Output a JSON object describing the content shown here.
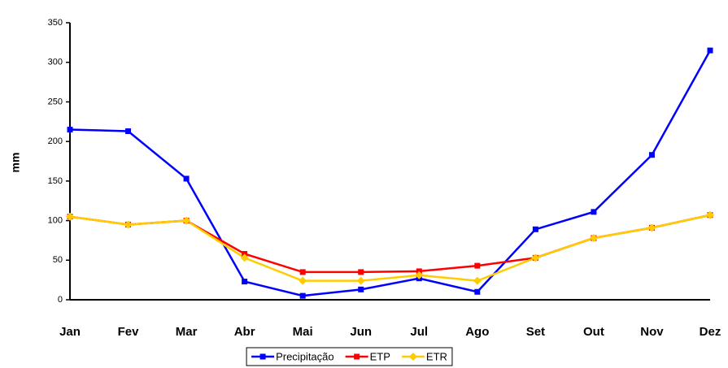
{
  "chart_data": {
    "type": "line",
    "y_label": "mm",
    "categories": [
      "Jan",
      "Fev",
      "Mar",
      "Abr",
      "Mai",
      "Jun",
      "Jul",
      "Ago",
      "Set",
      "Out",
      "Nov",
      "Dez"
    ],
    "series": [
      {
        "name": "Precipitação",
        "color": "#0000ff",
        "marker": "square",
        "values": [
          215,
          213,
          153,
          23,
          5,
          13,
          27,
          10,
          89,
          111,
          183,
          315
        ]
      },
      {
        "name": "ETP",
        "color": "#ff0000",
        "marker": "square",
        "values": [
          105,
          95,
          100,
          58,
          35,
          35,
          36,
          43,
          53,
          78,
          91,
          107
        ]
      },
      {
        "name": "ETR",
        "color": "#ffcc00",
        "marker": "diamond",
        "values": [
          105,
          95,
          100,
          53,
          24,
          24,
          31,
          24,
          53,
          78,
          91,
          107
        ]
      }
    ],
    "ylim": [
      0,
      350
    ],
    "yticks": [
      0,
      50,
      100,
      150,
      200,
      250,
      300,
      350
    ],
    "grid": false,
    "legend": "bottom"
  }
}
